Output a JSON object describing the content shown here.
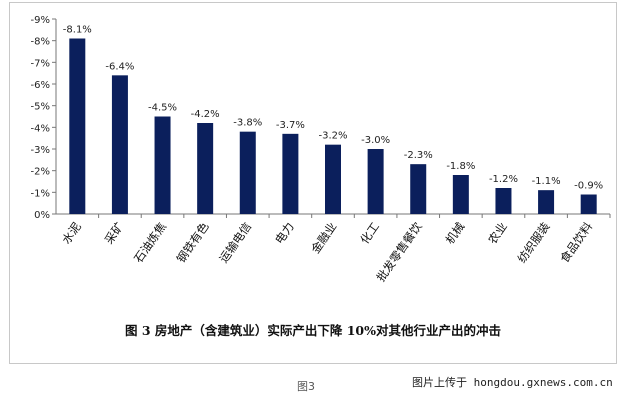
{
  "chart_data": {
    "type": "bar",
    "title": "图 3 房地产（含建筑业）实际产出下降 10%对其他行业产出的冲击",
    "xlabel": "",
    "ylabel": "",
    "categories": [
      "水泥",
      "采矿",
      "石油炼焦",
      "钢铁有色",
      "运输电信",
      "电力",
      "金融业",
      "化工",
      "批发零售餐饮",
      "机械",
      "农业",
      "纺织服装",
      "食品饮料"
    ],
    "values": [
      -8.1,
      -6.4,
      -4.5,
      -4.2,
      -3.8,
      -3.7,
      -3.2,
      -3.0,
      -2.3,
      -1.8,
      -1.2,
      -1.1,
      -0.9
    ],
    "data_labels": [
      "-8.1%",
      "-6.4%",
      "-4.5%",
      "-4.2%",
      "-3.8%",
      "-3.7%",
      "-3.2%",
      "-3.0%",
      "-2.3%",
      "-1.8%",
      "-1.2%",
      "-1.1%",
      "-0.9%"
    ],
    "y_ticks": [
      0,
      -1,
      -2,
      -3,
      -4,
      -5,
      -6,
      -7,
      -8,
      -9
    ],
    "y_tick_labels": [
      "0%",
      "-1%",
      "-2%",
      "-3%",
      "-4%",
      "-5%",
      "-6%",
      "-7%",
      "-8%",
      "-9%"
    ],
    "ylim": [
      0,
      -9
    ],
    "y_axis_reversed": true,
    "grid": false,
    "legend": "none",
    "bar_color": "#0b1f5c"
  },
  "figure_label": "图3",
  "source_note": "图片上传于 hongdou.gxnews.com.cn"
}
